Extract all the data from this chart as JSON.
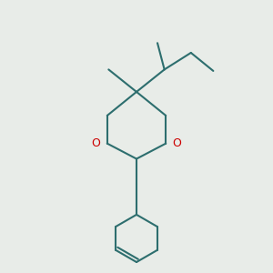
{
  "bg_color": "#e8ece8",
  "line_color": "#2d6e6e",
  "o_color": "#cc0000",
  "line_width": 1.5,
  "fig_size": [
    3.0,
    3.0
  ],
  "dpi": 100,
  "xlim": [
    0.1,
    0.9
  ],
  "ylim": [
    0.02,
    0.98
  ]
}
